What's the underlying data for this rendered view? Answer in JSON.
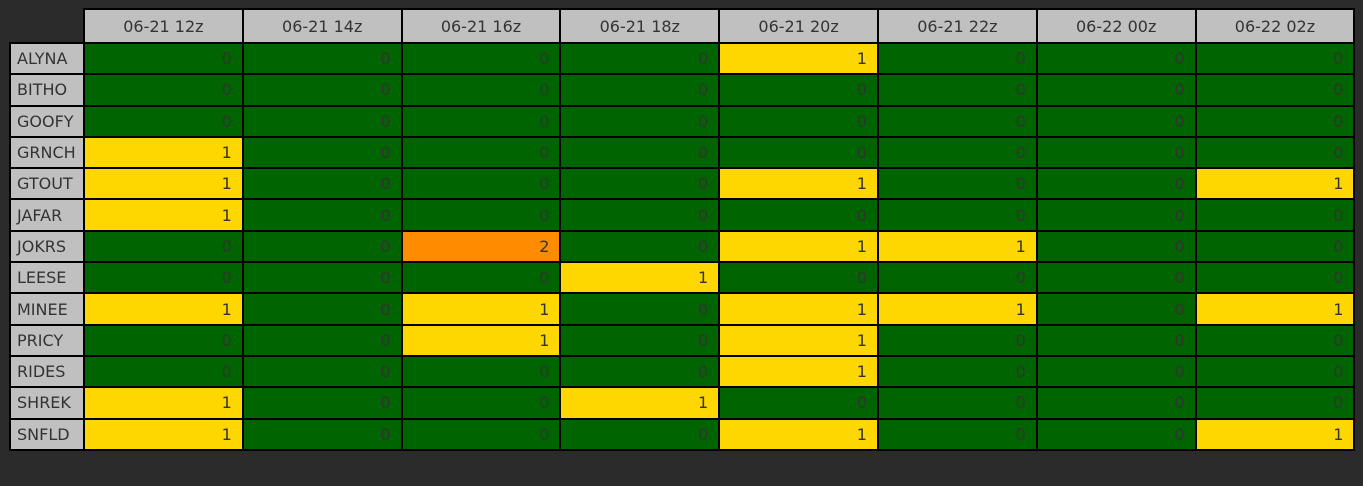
{
  "columns": [
    "06-21 12z",
    "06-21 14z",
    "06-21 16z",
    "06-21 18z",
    "06-21 20z",
    "06-21 22z",
    "06-22 00z",
    "06-22 02z"
  ],
  "rows": [
    {
      "name": "ALYNA",
      "values": [
        0,
        0,
        0,
        0,
        1,
        0,
        0,
        0
      ]
    },
    {
      "name": "BITHO",
      "values": [
        0,
        0,
        0,
        0,
        0,
        0,
        0,
        0
      ]
    },
    {
      "name": "GOOFY",
      "values": [
        0,
        0,
        0,
        0,
        0,
        0,
        0,
        0
      ]
    },
    {
      "name": "GRNCH",
      "values": [
        1,
        0,
        0,
        0,
        0,
        0,
        0,
        0
      ]
    },
    {
      "name": "GTOUT",
      "values": [
        1,
        0,
        0,
        0,
        1,
        0,
        0,
        1
      ]
    },
    {
      "name": "JAFAR",
      "values": [
        1,
        0,
        0,
        0,
        0,
        0,
        0,
        0
      ]
    },
    {
      "name": "JOKRS",
      "values": [
        0,
        0,
        2,
        0,
        1,
        1,
        0,
        0
      ]
    },
    {
      "name": "LEESE",
      "values": [
        0,
        0,
        0,
        1,
        0,
        0,
        0,
        0
      ]
    },
    {
      "name": "MINEE",
      "values": [
        1,
        0,
        1,
        0,
        1,
        1,
        0,
        1
      ]
    },
    {
      "name": "PRICY",
      "values": [
        0,
        0,
        1,
        0,
        1,
        0,
        0,
        0
      ]
    },
    {
      "name": "RIDES",
      "values": [
        0,
        0,
        0,
        0,
        1,
        0,
        0,
        0
      ]
    },
    {
      "name": "SHREK",
      "values": [
        1,
        0,
        0,
        1,
        0,
        0,
        0,
        0
      ]
    },
    {
      "name": "SNFLD",
      "values": [
        1,
        0,
        0,
        0,
        1,
        0,
        0,
        1
      ]
    }
  ],
  "level_colors": {
    "0": "#006400",
    "1": "#ffd700",
    "2": "#ff8c00"
  },
  "header_background": "#c0c0c0",
  "page_background": "#2b2b2b"
}
